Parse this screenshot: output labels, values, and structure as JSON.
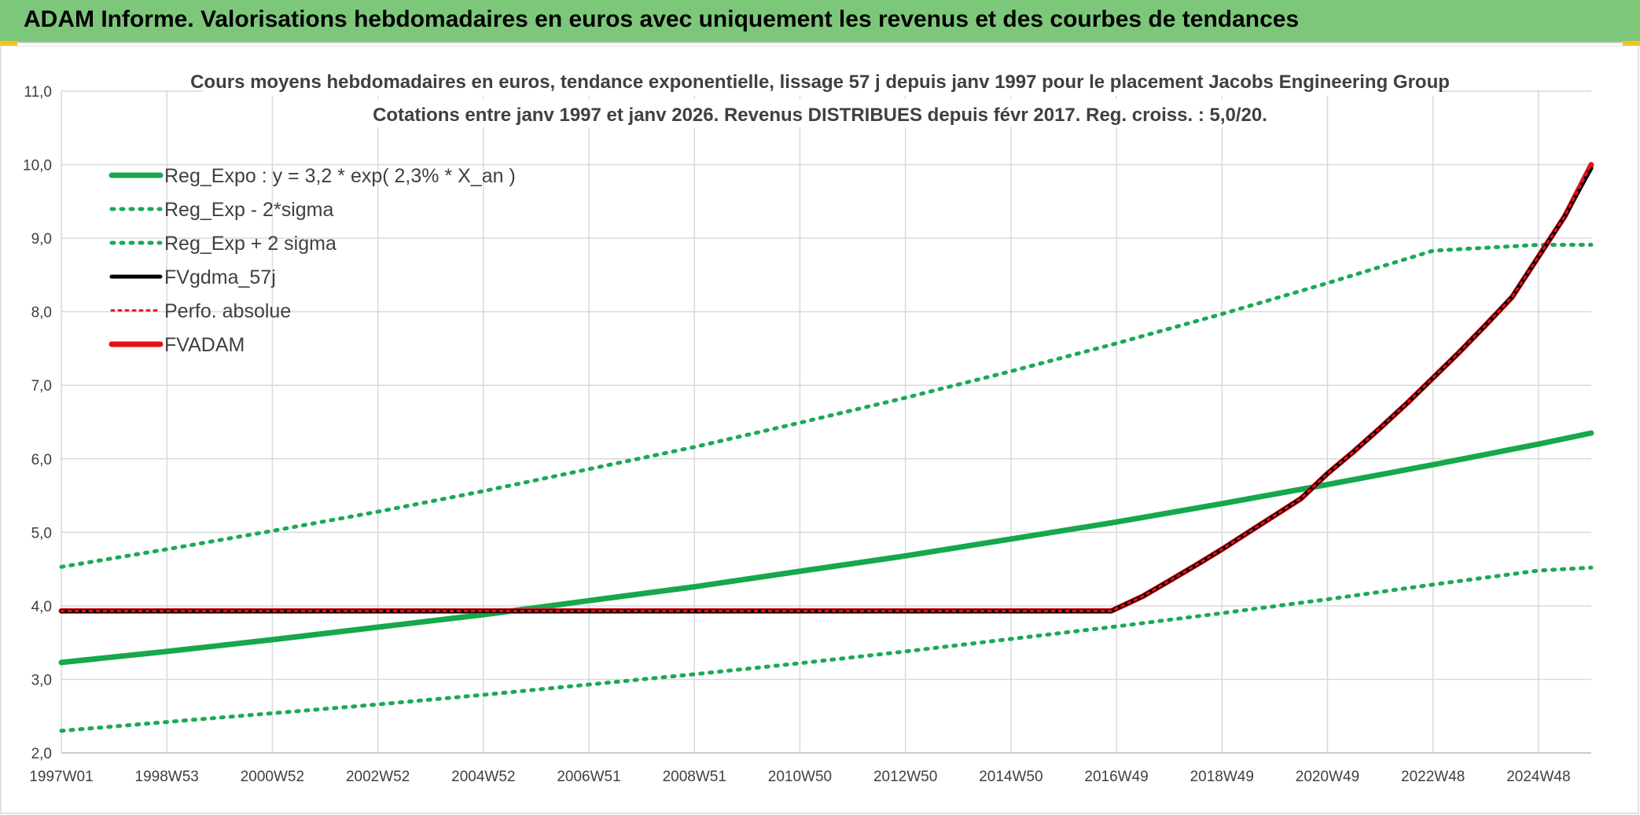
{
  "banner": {
    "title": "ADAM Informe. Valorisations hebdomadaires en euros avec uniquement les revenus et des courbes de tendances"
  },
  "colors": {
    "banner_bg": "#7dc77b",
    "green": "#16a84a",
    "green_dotted": "#1aaa55",
    "black": "#000000",
    "red": "#e8101a",
    "grid": "#d9d9d9"
  },
  "chart_data": {
    "type": "line",
    "title": "Cours moyens hebdomadaires en euros, tendance exponentielle, lissage 57 j depuis janv 1997 pour le placement Jacobs Engineering Group",
    "subtitle": "Cotations entre janv 1997 et janv 2026. Revenus DISTRIBUES depuis févr 2017. Reg. croiss. : 5,0/20.",
    "xlabel": "",
    "ylabel": "",
    "xlim": [
      1997.0,
      2026.0
    ],
    "ylim": [
      2.0,
      11.0
    ],
    "y_ticks": [
      2.0,
      3.0,
      4.0,
      5.0,
      6.0,
      7.0,
      8.0,
      9.0,
      10.0,
      11.0
    ],
    "y_tick_labels": [
      "2,0",
      "3,0",
      "4,0",
      "5,0",
      "6,0",
      "7,0",
      "8,0",
      "9,0",
      "10,0",
      "11,0"
    ],
    "x_ticks": [
      1997.0,
      1999.0,
      2001.0,
      2003.0,
      2005.0,
      2007.0,
      2009.0,
      2011.0,
      2013.0,
      2015.0,
      2017.0,
      2019.0,
      2021.0,
      2023.0,
      2025.0
    ],
    "x_tick_labels": [
      "1997W01",
      "1998W53",
      "2000W52",
      "2002W52",
      "2004W52",
      "2006W51",
      "2008W51",
      "2010W50",
      "2012W50",
      "2014W50",
      "2016W49",
      "2018W49",
      "2020W49",
      "2022W48",
      "2024W48"
    ],
    "grid": true,
    "legend_position": "top-left",
    "series": [
      {
        "name": "Reg_Expo : y = 3,2 * exp( 2,3% *  X_an )",
        "style": "solid",
        "x": [
          1997.0,
          1999.0,
          2001.0,
          2003.0,
          2005.0,
          2007.0,
          2009.0,
          2011.0,
          2013.0,
          2015.0,
          2017.0,
          2019.0,
          2021.0,
          2023.0,
          2025.0,
          2026.0
        ],
        "values": [
          3.23,
          3.38,
          3.54,
          3.71,
          3.88,
          4.07,
          4.26,
          4.47,
          4.68,
          4.91,
          5.14,
          5.39,
          5.65,
          5.92,
          6.2,
          6.35
        ]
      },
      {
        "name": "Reg_Exp - 2*sigma",
        "style": "dotted",
        "x": [
          1997.0,
          1999.0,
          2001.0,
          2003.0,
          2005.0,
          2007.0,
          2009.0,
          2011.0,
          2013.0,
          2015.0,
          2017.0,
          2019.0,
          2021.0,
          2023.0,
          2025.0,
          2026.0
        ],
        "values": [
          2.3,
          2.42,
          2.54,
          2.66,
          2.79,
          2.93,
          3.07,
          3.22,
          3.38,
          3.55,
          3.72,
          3.9,
          4.09,
          4.29,
          4.48,
          4.52
        ]
      },
      {
        "name": "Reg_Exp + 2 sigma",
        "style": "dotted",
        "x": [
          1997.0,
          1999.0,
          2001.0,
          2003.0,
          2005.0,
          2007.0,
          2009.0,
          2011.0,
          2013.0,
          2015.0,
          2017.0,
          2019.0,
          2021.0,
          2023.0,
          2025.0,
          2026.0
        ],
        "values": [
          4.53,
          4.77,
          5.02,
          5.28,
          5.56,
          5.86,
          6.16,
          6.49,
          6.83,
          7.19,
          7.57,
          7.97,
          8.39,
          8.83,
          8.91,
          8.91
        ]
      },
      {
        "name": "FVgdma_57j",
        "style": "solid",
        "x": [
          1997.0,
          2016.9,
          2017.5,
          2018.0,
          2018.5,
          2019.0,
          2019.5,
          2020.0,
          2020.5,
          2021.0,
          2021.5,
          2022.0,
          2022.5,
          2023.0,
          2023.5,
          2024.0,
          2024.5,
          2025.0,
          2025.5,
          2026.0
        ],
        "values": [
          3.93,
          3.93,
          4.13,
          4.34,
          4.55,
          4.77,
          5.0,
          5.23,
          5.46,
          5.8,
          6.1,
          6.42,
          6.75,
          7.1,
          7.45,
          7.82,
          8.2,
          8.75,
          9.3,
          9.95
        ]
      },
      {
        "name": "Perfo. absolue",
        "style": "dotted",
        "x": [
          1997.0,
          2016.9,
          2017.5,
          2018.0,
          2018.5,
          2019.0,
          2019.5,
          2020.0,
          2020.5,
          2021.0,
          2021.5,
          2022.0,
          2022.5,
          2023.0,
          2023.5,
          2024.0,
          2024.5,
          2025.0,
          2025.5,
          2026.0
        ],
        "values": [
          3.93,
          3.93,
          4.13,
          4.34,
          4.55,
          4.77,
          5.0,
          5.23,
          5.46,
          5.8,
          6.1,
          6.42,
          6.75,
          7.1,
          7.45,
          7.82,
          8.2,
          8.75,
          9.3,
          10.0
        ]
      },
      {
        "name": "FVADAM",
        "style": "solid",
        "x": [
          1997.0,
          2016.9,
          2017.5,
          2018.0,
          2018.5,
          2019.0,
          2019.5,
          2020.0,
          2020.5,
          2021.0,
          2021.5,
          2022.0,
          2022.5,
          2023.0,
          2023.5,
          2024.0,
          2024.5,
          2025.0,
          2025.5,
          2026.0
        ],
        "values": [
          3.93,
          3.93,
          4.13,
          4.34,
          4.55,
          4.77,
          5.0,
          5.23,
          5.46,
          5.8,
          6.1,
          6.42,
          6.75,
          7.1,
          7.45,
          7.82,
          8.2,
          8.75,
          9.3,
          10.0
        ]
      }
    ]
  }
}
